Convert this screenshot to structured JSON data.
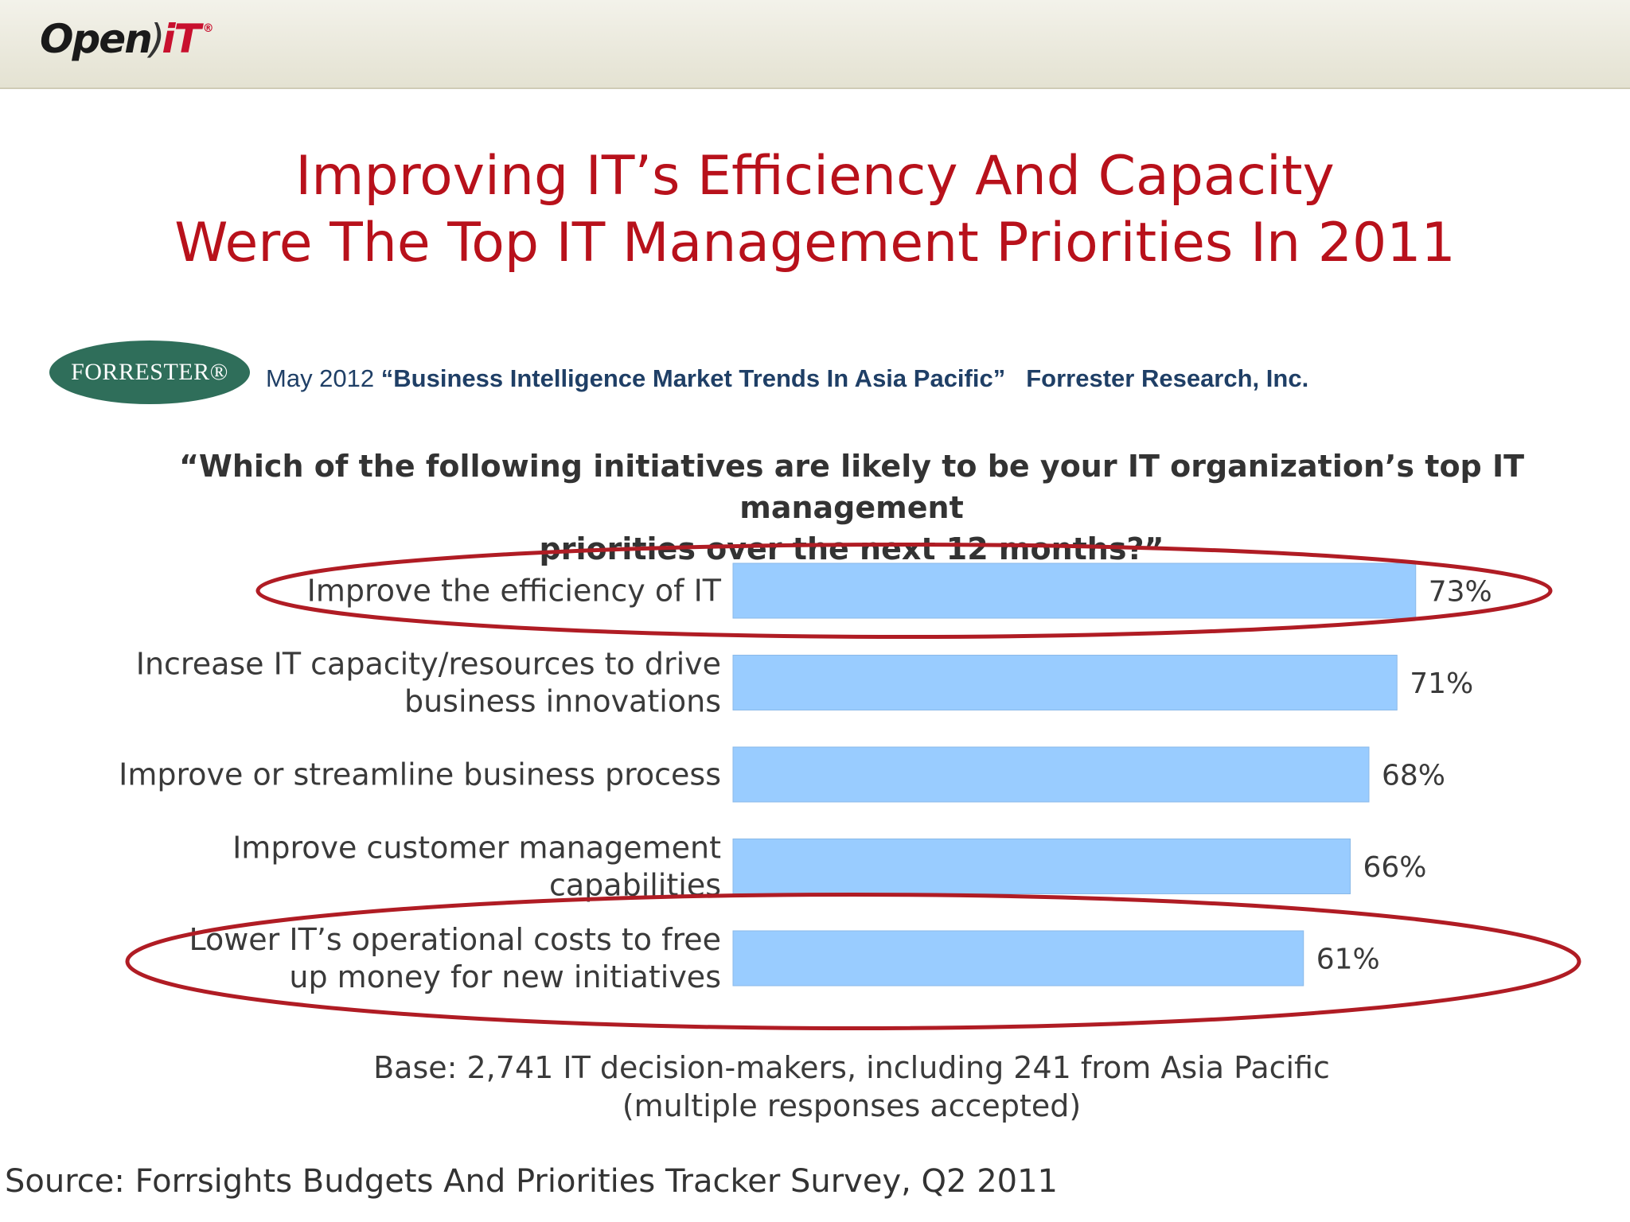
{
  "brand": {
    "logo_text_open": "Open",
    "logo_text_it": "iT",
    "logo_reg": "®",
    "colors": {
      "title_red": "#b8111b",
      "bar_blue": "#99ccff",
      "ellipse_red": "#b01c24",
      "forrester_green": "#2f6e5a"
    }
  },
  "slide": {
    "title_line1": "Improving IT’s Efficiency And Capacity",
    "title_line2": "Were The Top IT Management Priorities In 2011"
  },
  "forrester": {
    "badge": "FORRESTER®",
    "date": "May 2012 ",
    "report_title": "“Business Intelligence Market Trends In Asia Pacific”",
    "publisher": "Forrester Research, Inc."
  },
  "question": {
    "line1": "“Which of the following initiatives are likely to be your IT organization’s top IT management",
    "line2": "priorities over the next 12 months?”"
  },
  "chart_data": {
    "type": "bar",
    "orientation": "horizontal",
    "categories": [
      "Improve the efficiency of IT",
      "Increase IT capacity/resources to drive business innovations",
      "Improve or streamline business process",
      "Improve customer management capabilities",
      "Lower IT’s operational costs to free up money for new initiatives"
    ],
    "category_lines": [
      [
        "Improve the efficiency of IT"
      ],
      [
        "Increase IT capacity/resources to drive",
        "business innovations"
      ],
      [
        "Improve or streamline business process"
      ],
      [
        "Improve customer management",
        "capabilities"
      ],
      [
        "Lower IT’s operational costs to free",
        "up money for new initiatives"
      ]
    ],
    "values": [
      73,
      71,
      68,
      66,
      61
    ],
    "value_labels": [
      "73%",
      "71%",
      "68%",
      "66%",
      "61%"
    ],
    "unit": "%",
    "highlighted": [
      0,
      4
    ],
    "grid": false,
    "legend": "none"
  },
  "notes": {
    "base_line1": "Base: 2,741 IT decision-makers, including 241 from Asia Pacific",
    "base_line2": "(multiple responses accepted)",
    "source": "Source: Forrsights Budgets And Priorities Tracker Survey, Q2 2011"
  }
}
